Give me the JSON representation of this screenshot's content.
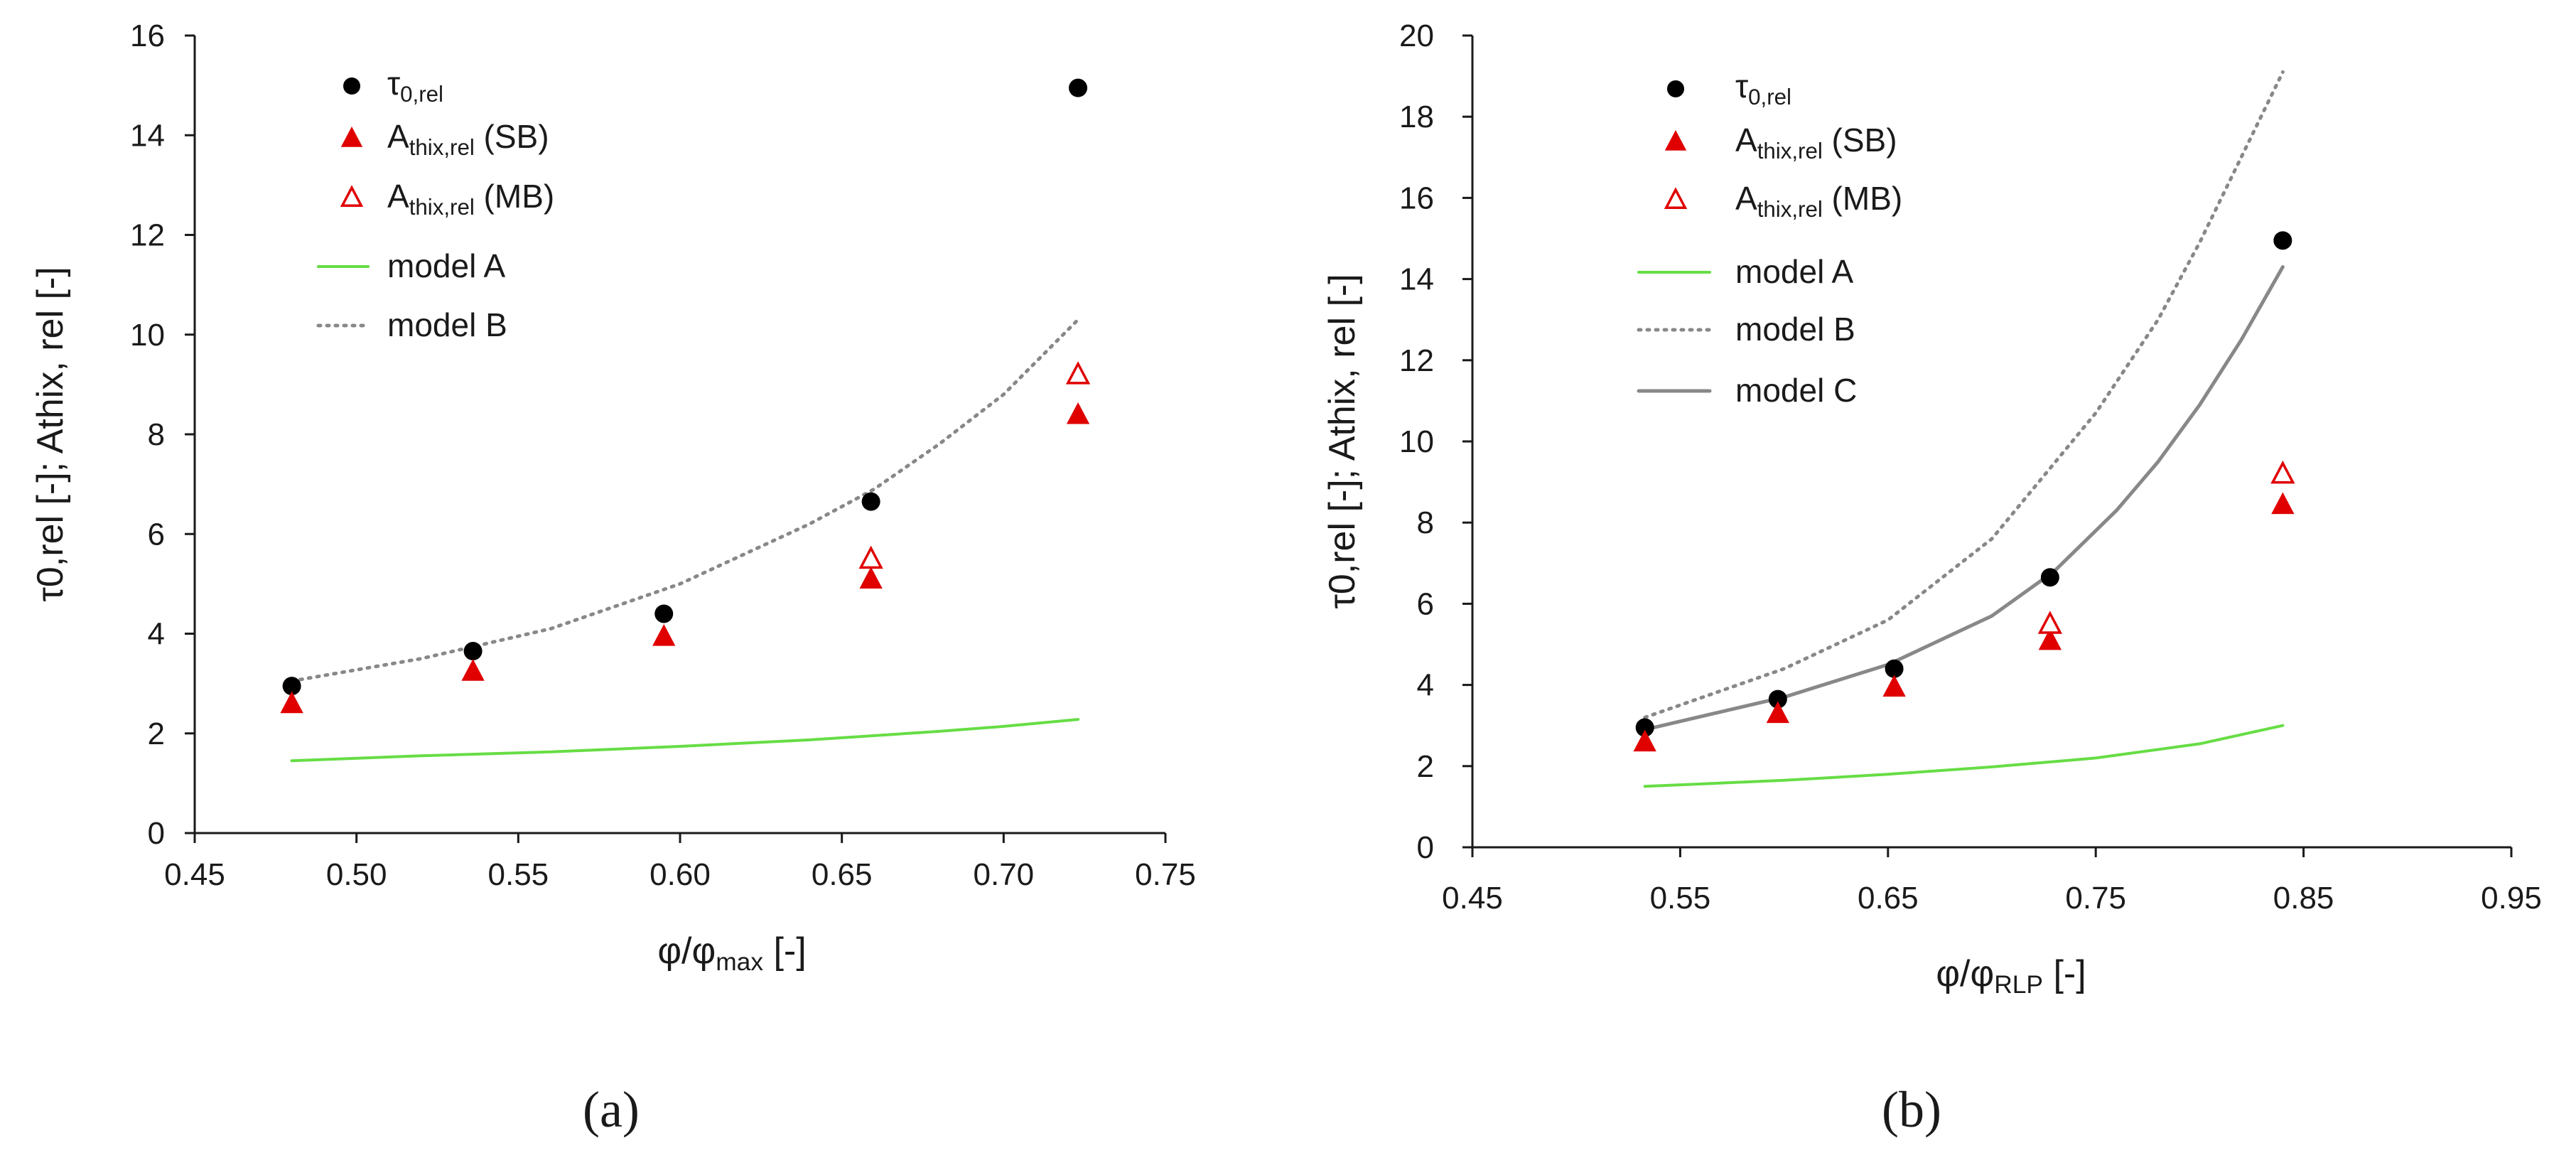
{
  "panel_labels": {
    "a": "(a)",
    "b": "(b)"
  },
  "legend_labels": {
    "tau": "τ0,rel",
    "sb": "Athix,rel (SB)",
    "mb": "Athix,rel (MB)",
    "model_a": "model A",
    "model_b": "model B",
    "model_c": "model C"
  },
  "colors": {
    "tau": "#000000",
    "athix": "#e00000",
    "model_a": "#66dd44",
    "model_b": "#888888",
    "model_c": "#888888",
    "axis": "#1a1a1a"
  },
  "chart_data": [
    {
      "id": "a",
      "type": "scatter",
      "xlabel": "φ/φmax [-]",
      "ylabel": "τ0,rel [-]; Athix, rel [-]",
      "xlim": [
        0.45,
        0.75
      ],
      "ylim": [
        0,
        16
      ],
      "xticks": [
        "0.45",
        "0.50",
        "0.55",
        "0.60",
        "0.65",
        "0.70",
        "0.75"
      ],
      "yticks": [
        "0",
        "2",
        "4",
        "6",
        "8",
        "10",
        "12",
        "14",
        "16"
      ],
      "grid": false,
      "legend": "top-left",
      "series": [
        {
          "name": "τ0,rel",
          "kind": "marker",
          "marker": "circle",
          "x": [
            0.48,
            0.536,
            0.595,
            0.659,
            0.723
          ],
          "y": [
            2.95,
            3.65,
            4.4,
            6.65,
            14.95
          ]
        },
        {
          "name": "Athix,rel (SB)",
          "kind": "marker",
          "marker": "triangle",
          "x": [
            0.48,
            0.536,
            0.595,
            0.659,
            0.723
          ],
          "y": [
            2.6,
            3.25,
            3.95,
            5.1,
            8.4
          ]
        },
        {
          "name": "Athix,rel (MB)",
          "kind": "marker",
          "marker": "triangle-open",
          "x": [
            0.659,
            0.723
          ],
          "y": [
            5.5,
            9.2
          ]
        },
        {
          "name": "model A",
          "kind": "line",
          "style": "solid",
          "x": [
            0.48,
            0.52,
            0.56,
            0.6,
            0.64,
            0.68,
            0.7,
            0.723
          ],
          "y": [
            1.45,
            1.55,
            1.63,
            1.74,
            1.87,
            2.04,
            2.14,
            2.28
          ]
        },
        {
          "name": "model B",
          "kind": "line",
          "style": "dotted",
          "x": [
            0.48,
            0.52,
            0.56,
            0.6,
            0.64,
            0.66,
            0.68,
            0.7,
            0.723
          ],
          "y": [
            3.05,
            3.5,
            4.1,
            5.0,
            6.2,
            6.9,
            7.8,
            8.8,
            10.3
          ]
        }
      ]
    },
    {
      "id": "b",
      "type": "scatter",
      "xlabel": "φ/φRLP [-]",
      "ylabel": "τ0,rel [-]; Athix, rel [-]",
      "xlim": [
        0.45,
        0.95
      ],
      "ylim": [
        0,
        20
      ],
      "xticks": [
        "0.45",
        "0.55",
        "0.65",
        "0.75",
        "0.85",
        "0.95"
      ],
      "yticks": [
        "0",
        "2",
        "4",
        "6",
        "8",
        "10",
        "12",
        "14",
        "16",
        "18",
        "20"
      ],
      "grid": false,
      "legend": "top-left",
      "series": [
        {
          "name": "τ0,rel",
          "kind": "marker",
          "marker": "circle",
          "x": [
            0.533,
            0.597,
            0.653,
            0.728,
            0.84
          ],
          "y": [
            2.95,
            3.65,
            4.4,
            6.65,
            14.95
          ]
        },
        {
          "name": "Athix,rel (SB)",
          "kind": "marker",
          "marker": "triangle",
          "x": [
            0.533,
            0.597,
            0.653,
            0.728,
            0.84
          ],
          "y": [
            2.6,
            3.3,
            3.95,
            5.1,
            8.45
          ]
        },
        {
          "name": "Athix,rel (MB)",
          "kind": "marker",
          "marker": "triangle-open",
          "x": [
            0.728,
            0.84
          ],
          "y": [
            5.5,
            9.2
          ]
        },
        {
          "name": "model A",
          "kind": "line",
          "style": "solid",
          "x": [
            0.533,
            0.6,
            0.65,
            0.7,
            0.75,
            0.8,
            0.84
          ],
          "y": [
            1.5,
            1.65,
            1.8,
            1.98,
            2.2,
            2.55,
            3.0
          ]
        },
        {
          "name": "model B",
          "kind": "line",
          "style": "dotted",
          "x": [
            0.533,
            0.6,
            0.65,
            0.7,
            0.75,
            0.78,
            0.8,
            0.82,
            0.84
          ],
          "y": [
            3.2,
            4.4,
            5.6,
            7.6,
            10.7,
            13.0,
            14.9,
            17.0,
            19.1
          ]
        },
        {
          "name": "model C",
          "kind": "line",
          "style": "solid",
          "x": [
            0.533,
            0.6,
            0.65,
            0.7,
            0.73,
            0.76,
            0.78,
            0.8,
            0.82,
            0.84
          ],
          "y": [
            2.9,
            3.7,
            4.5,
            5.7,
            6.8,
            8.3,
            9.5,
            10.9,
            12.5,
            14.3
          ]
        }
      ]
    }
  ]
}
